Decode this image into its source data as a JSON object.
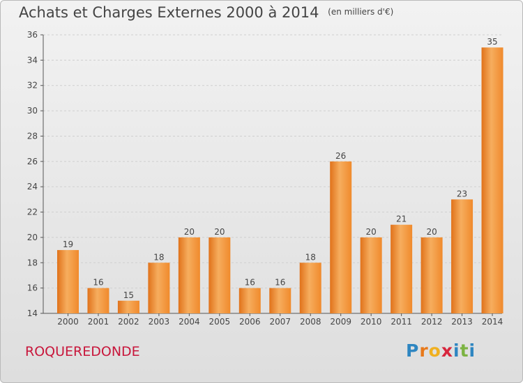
{
  "title": "Achats et Charges Externes 2000 à 2014",
  "subtitle": "(en milliers d'€)",
  "brand_label": "ROQUEREDONDE",
  "logo": {
    "letters": [
      "P",
      "r",
      "o",
      "x",
      "i",
      "t",
      "i"
    ],
    "colors": [
      "#2e86c1",
      "#e8791a",
      "#f0b020",
      "#d7263d",
      "#2e86c1",
      "#7cb342",
      "#2e86c1"
    ]
  },
  "colors": {
    "bar": "#f08a2c",
    "bar_light": "#f6ad5e",
    "bar_dark": "#e0721a",
    "grid": "#cfcfcf"
  },
  "chart_data": {
    "type": "bar",
    "categories": [
      "2000",
      "2001",
      "2002",
      "2003",
      "2004",
      "2005",
      "2006",
      "2007",
      "2008",
      "2009",
      "2010",
      "2011",
      "2012",
      "2013",
      "2014"
    ],
    "values": [
      19,
      16,
      15,
      18,
      20,
      20,
      16,
      16,
      18,
      26,
      20,
      21,
      20,
      23,
      35
    ],
    "data_labels": [
      "19",
      "16",
      "15",
      "18",
      "20",
      "20",
      "16",
      "16",
      "18",
      "26",
      "20",
      "21",
      "20",
      "23",
      "35"
    ],
    "yticks": [
      14,
      16,
      18,
      20,
      22,
      24,
      26,
      28,
      30,
      32,
      34,
      36
    ],
    "ylim": [
      14,
      36
    ],
    "grid": "horizontal dashed",
    "xlabel": "",
    "ylabel": ""
  }
}
